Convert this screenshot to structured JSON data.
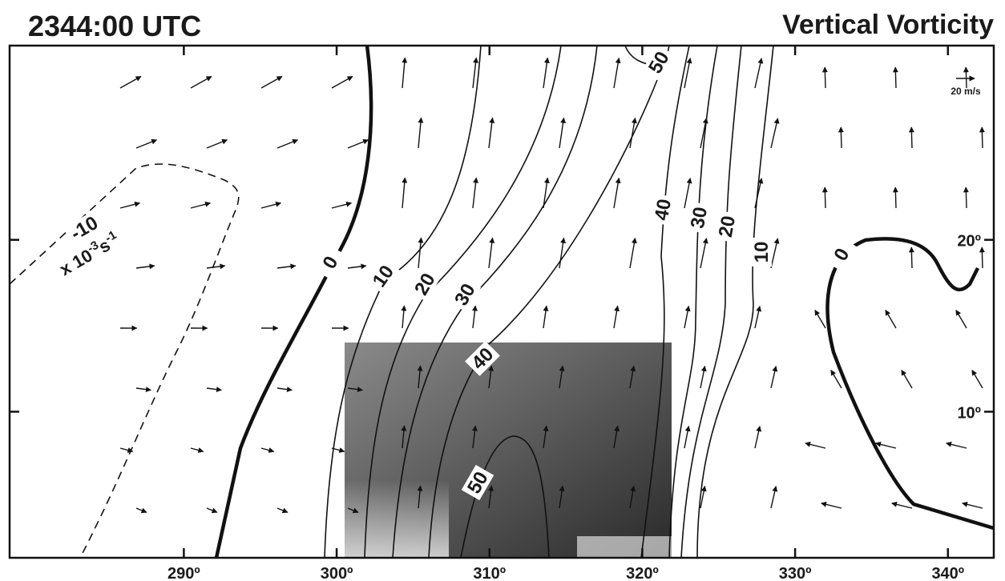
{
  "chart_data": {
    "type": "contour",
    "title": "2344:00 UTC",
    "subtitle": "Vertical Vorticity",
    "units": {
      "base": "x 10",
      "exp": "-3",
      "unit": "s",
      "exp2": "-1"
    },
    "vector_scale_label": "20 m/s",
    "xlim": [
      278.6,
      343
    ],
    "ylim": [
      1.5,
      31.3
    ],
    "xticks": [
      {
        "value": 290,
        "label": "290º"
      },
      {
        "value": 300,
        "label": "300º"
      },
      {
        "value": 310,
        "label": "310º"
      },
      {
        "value": 320,
        "label": "320º"
      },
      {
        "value": 330,
        "label": "330º"
      },
      {
        "value": 340,
        "label": "340º"
      }
    ],
    "yticks": [
      {
        "value": 10,
        "label": "10º"
      },
      {
        "value": 20,
        "label": "20º"
      }
    ],
    "levels": [
      -10,
      0,
      10,
      20,
      30,
      40,
      50
    ]
  }
}
